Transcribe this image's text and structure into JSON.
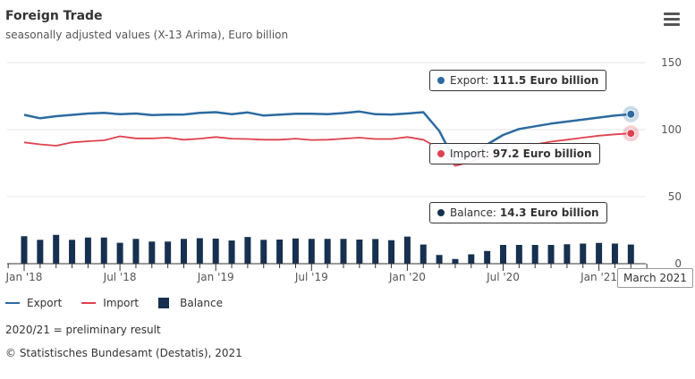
{
  "header": {
    "title": "Foreign Trade",
    "subtitle": "seasonally adjusted values (X-13 Arima), Euro billion",
    "menu_icon": "hamburger-menu-icon"
  },
  "colors": {
    "export": "#2c6aa0",
    "import": "#e0414f",
    "balance": "#17304f",
    "grid": "#e6e6e6"
  },
  "chart_data": {
    "type": "line+bar",
    "title": "Foreign Trade",
    "subtitle": "seasonally adjusted values (X-13 Arima), Euro billion",
    "xlabel": "",
    "ylabel": "",
    "ylim": [
      0,
      150
    ],
    "yticks": [
      0,
      50,
      100,
      150
    ],
    "ytick_labels": [
      "0",
      "50",
      "100",
      "150"
    ],
    "grid": true,
    "legend_position": "bottom-left",
    "x": [
      "2018-01",
      "2018-02",
      "2018-03",
      "2018-04",
      "2018-05",
      "2018-06",
      "2018-07",
      "2018-08",
      "2018-09",
      "2018-10",
      "2018-11",
      "2018-12",
      "2019-01",
      "2019-02",
      "2019-03",
      "2019-04",
      "2019-05",
      "2019-06",
      "2019-07",
      "2019-08",
      "2019-09",
      "2019-10",
      "2019-11",
      "2019-12",
      "2020-01",
      "2020-02",
      "2020-03",
      "2020-04",
      "2020-05",
      "2020-06",
      "2020-07",
      "2020-08",
      "2020-09",
      "2020-10",
      "2020-11",
      "2020-12",
      "2021-01",
      "2021-02",
      "2021-03"
    ],
    "xtick_labels": [
      {
        "index": 0,
        "label": "Jan '18"
      },
      {
        "index": 6,
        "label": "Jul '18"
      },
      {
        "index": 12,
        "label": "Jan '19"
      },
      {
        "index": 18,
        "label": "Jul '19"
      },
      {
        "index": 24,
        "label": "Jan '20"
      },
      {
        "index": 30,
        "label": "Jul '20"
      },
      {
        "index": 36,
        "label": "Jan '21"
      }
    ],
    "series": [
      {
        "name": "Export",
        "type": "line",
        "values": [
          111.0,
          108.5,
          110.0,
          111.0,
          112.0,
          112.5,
          111.5,
          112.0,
          110.8,
          111.2,
          111.3,
          112.5,
          113.0,
          111.5,
          112.8,
          110.5,
          111.2,
          111.8,
          111.8,
          111.5,
          112.3,
          113.5,
          111.5,
          111.3,
          112.0,
          113.0,
          99.0,
          76.0,
          82.0,
          89.0,
          96.0,
          100.5,
          102.5,
          104.5,
          106.0,
          107.5,
          109.0,
          110.5,
          111.5
        ]
      },
      {
        "name": "Import",
        "type": "line",
        "values": [
          90.5,
          89.0,
          88.0,
          90.5,
          91.3,
          92.0,
          95.0,
          93.5,
          93.5,
          94.0,
          92.5,
          93.3,
          94.5,
          93.3,
          93.0,
          92.5,
          92.5,
          93.3,
          92.3,
          92.5,
          93.3,
          94.0,
          93.0,
          93.0,
          94.5,
          92.5,
          86.0,
          73.0,
          76.0,
          81.5,
          82.0,
          86.0,
          89.0,
          91.0,
          92.5,
          94.0,
          95.5,
          96.5,
          97.2
        ]
      },
      {
        "name": "Balance",
        "type": "bar",
        "values": [
          20.5,
          17.8,
          21.5,
          17.8,
          19.5,
          19.5,
          15.6,
          18.5,
          16.5,
          16.5,
          18.5,
          19.0,
          18.7,
          17.3,
          19.9,
          17.8,
          18.0,
          18.8,
          18.5,
          18.5,
          18.5,
          18.0,
          18.4,
          17.5,
          20.2,
          14.3,
          6.5,
          3.5,
          7.0,
          9.5,
          14.0,
          14.0,
          14.0,
          14.0,
          14.5,
          15.0,
          15.5,
          15.0,
          14.3
        ]
      }
    ],
    "tooltip": {
      "export_label": "Export:",
      "export_value": "111.5 Euro billion",
      "import_label": "Import:",
      "import_value": "97.2 Euro billion",
      "balance_label": "Balance:",
      "balance_value": "14.3 Euro billion",
      "x_label": "March 2021"
    }
  },
  "legend": {
    "items": [
      {
        "label": "Export"
      },
      {
        "label": "Import"
      },
      {
        "label": "Balance"
      }
    ]
  },
  "footer": {
    "note": "2020/21 = preliminary result",
    "credit": "© Statistisches Bundesamt (Destatis), 2021"
  }
}
